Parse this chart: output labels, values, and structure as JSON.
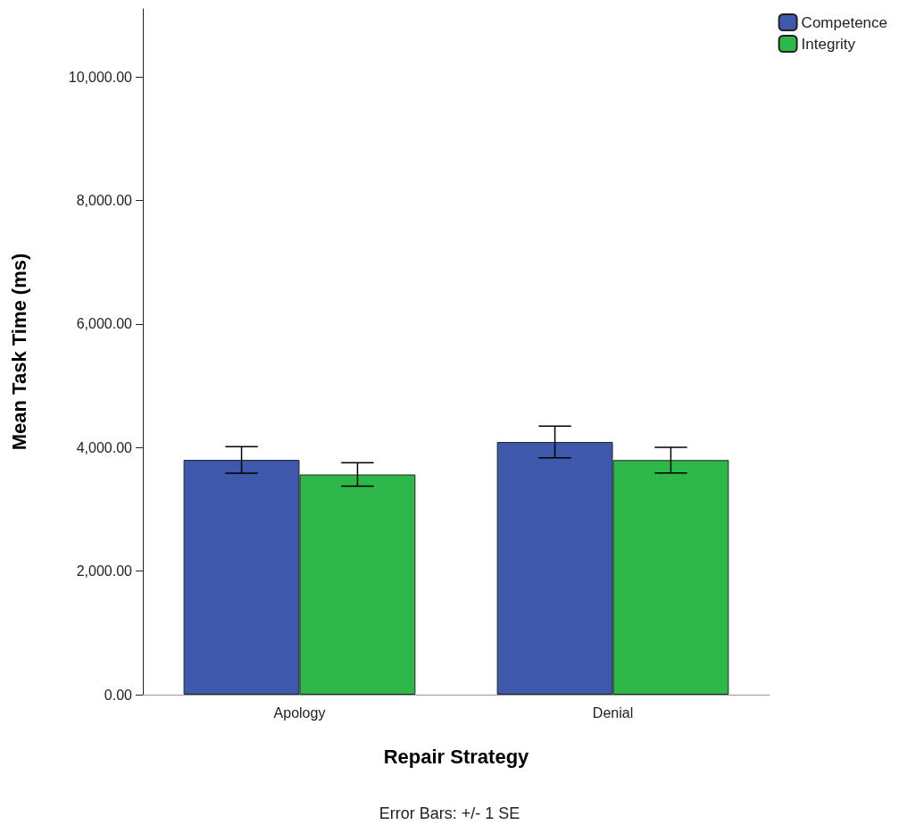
{
  "chart_data": {
    "type": "bar",
    "xlabel": "Repair Strategy",
    "ylabel": "Mean Task Time (ms)",
    "categories": [
      "Apology",
      "Denial"
    ],
    "series": [
      {
        "name": "Competence",
        "color": "#3e58ac",
        "values": [
          3800,
          4090
        ],
        "errors": [
          215,
          255
        ]
      },
      {
        "name": "Integrity",
        "color": "#2fb84a",
        "values": [
          3563,
          3797
        ],
        "errors": [
          190,
          208
        ]
      }
    ],
    "ylim": [
      0,
      11100
    ],
    "yticks": [
      {
        "value": 0,
        "label": "0.00"
      },
      {
        "value": 2000,
        "label": "2,000.00"
      },
      {
        "value": 4000,
        "label": "4,000.00"
      },
      {
        "value": 6000,
        "label": "6,000.00"
      },
      {
        "value": 8000,
        "label": "8,000.00"
      },
      {
        "value": 10000,
        "label": "10,000.00"
      }
    ],
    "grid": false,
    "legend": "top right",
    "annotations": [
      "Error Bars: +/- 1 SE"
    ]
  }
}
